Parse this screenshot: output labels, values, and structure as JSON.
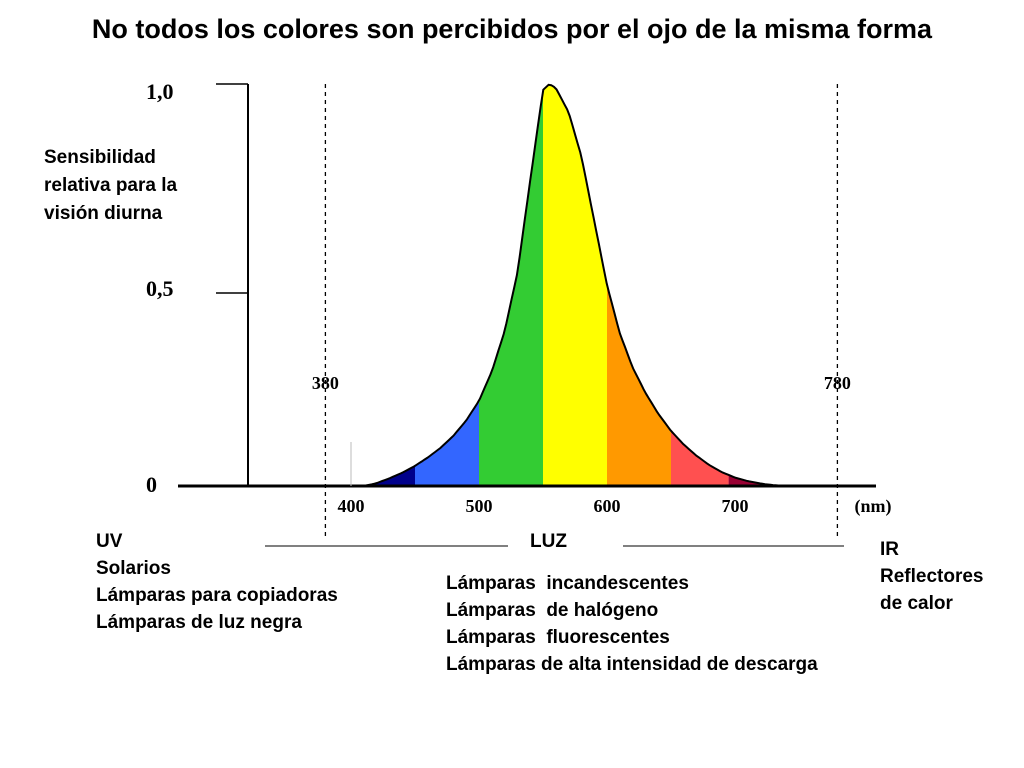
{
  "title": "No todos los colores son percibidos por el ojo de la misma forma",
  "chart_data": {
    "type": "area",
    "ylabel_lines": [
      "Sensibilidad",
      "relativa para la",
      "visión diurna"
    ],
    "y_ticks": [
      "1,0",
      "0,5",
      "0"
    ],
    "x_ticks": [
      "400",
      "500",
      "600",
      "700"
    ],
    "x_unit": "(nm)",
    "markers": [
      {
        "label": "380",
        "x": 380
      },
      {
        "label": "780",
        "x": 780
      }
    ],
    "curve": {
      "x": [
        410,
        420,
        430,
        440,
        450,
        460,
        470,
        480,
        490,
        500,
        510,
        520,
        530,
        540,
        550,
        555,
        560,
        570,
        580,
        590,
        600,
        610,
        620,
        630,
        640,
        650,
        660,
        670,
        680,
        690,
        700,
        710,
        720,
        730,
        740
      ],
      "y": [
        0.0,
        0.007,
        0.019,
        0.033,
        0.05,
        0.071,
        0.095,
        0.125,
        0.163,
        0.212,
        0.285,
        0.385,
        0.53,
        0.76,
        0.985,
        1.0,
        0.99,
        0.93,
        0.82,
        0.66,
        0.5,
        0.38,
        0.295,
        0.232,
        0.18,
        0.137,
        0.103,
        0.075,
        0.052,
        0.034,
        0.021,
        0.012,
        0.006,
        0.002,
        0.0
      ]
    },
    "bands": [
      {
        "from": 410,
        "to": 450,
        "color": "#00008b"
      },
      {
        "from": 450,
        "to": 500,
        "color": "#3366ff"
      },
      {
        "from": 500,
        "to": 550,
        "color": "#33cc33"
      },
      {
        "from": 550,
        "to": 600,
        "color": "#ffff00"
      },
      {
        "from": 600,
        "to": 650,
        "color": "#ff9900"
      },
      {
        "from": 650,
        "to": 695,
        "color": "#ff5050"
      },
      {
        "from": 695,
        "to": 740,
        "color": "#990033"
      }
    ],
    "xlim": [
      250,
      870
    ],
    "ylim": [
      0,
      1
    ]
  },
  "uv": {
    "lines": [
      "UV",
      "Solarios",
      "Lámparas para copiadoras",
      "Lámparas de luz negra"
    ]
  },
  "luz": {
    "label": "LUZ",
    "lines": [
      "Lámparas  incandescentes",
      "Lámparas  de halógeno",
      "Lámparas  fluorescentes",
      "Lámparas de alta intensidad de descarga"
    ]
  },
  "ir": {
    "lines": [
      "IR",
      "Reflectores",
      "de calor"
    ]
  }
}
